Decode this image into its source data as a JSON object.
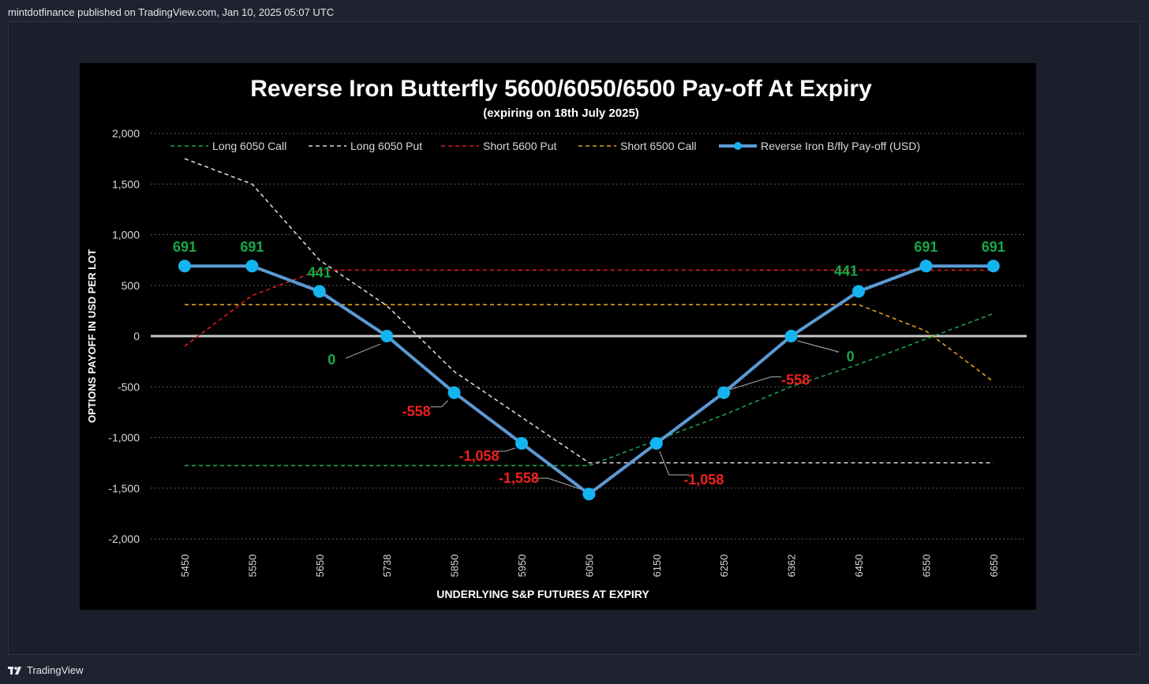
{
  "header": {
    "publish_text": "mintdotfinance published on TradingView.com, Jan 10, 2025 05:07 UTC"
  },
  "footer": {
    "brand": "TradingView"
  },
  "colors": {
    "background": "#000000",
    "long_call": "#1aa34a",
    "long_put": "#d9d9d9",
    "short_put": "#e01a1a",
    "short_call": "#e0a015",
    "payoff_line": "#5b9bd5",
    "payoff_marker": "#14b4f0",
    "label_positive": "#18a848",
    "label_negative": "#f0201e"
  },
  "chart_data": {
    "type": "line",
    "title": "Reverse Iron Butterfly 5600/6050/6500 Pay-off At Expiry",
    "subtitle": "(expiring on 18th July 2025)",
    "xlabel": "UNDERLYING S&P FUTURES AT EXPIRY",
    "ylabel": "OPTIONS PAYOFF IN USD PER LOT",
    "ylim": [
      -2000,
      2000
    ],
    "yticks": [
      2000,
      1500,
      1000,
      500,
      0,
      -500,
      -1000,
      -1500,
      -2000
    ],
    "ytick_labels": [
      "2,000",
      "1,500",
      "1,000",
      "500",
      "0",
      "-500",
      "-1,000",
      "-1,500",
      "-2,000"
    ],
    "categories": [
      "5450",
      "5550",
      "5650",
      "5738",
      "5850",
      "5950",
      "6050",
      "6150",
      "6250",
      "6362",
      "6450",
      "6550",
      "6650"
    ],
    "grid": true,
    "legend_position": "top",
    "series": [
      {
        "name": "Long 6050 Call",
        "style": "dashed",
        "color": "#1aa34a",
        "values": [
          -1278,
          -1278,
          -1278,
          -1278,
          -1278,
          -1278,
          -1278,
          -1028,
          -778,
          -498,
          -278,
          -28,
          222
        ]
      },
      {
        "name": "Long 6050 Put",
        "style": "dashed",
        "color": "#d9d9d9",
        "values": [
          1750,
          1500,
          750,
          300,
          -350,
          -800,
          -1250,
          -1250,
          -1250,
          -1250,
          -1250,
          -1250,
          -1250
        ]
      },
      {
        "name": "Short 5600 Put",
        "style": "dashed",
        "color": "#e01a1a",
        "values": [
          -100,
          400,
          650,
          650,
          650,
          650,
          650,
          650,
          650,
          650,
          650,
          650,
          650
        ]
      },
      {
        "name": "Short 6500 Call",
        "style": "dashed",
        "color": "#e0a015",
        "values": [
          310,
          310,
          310,
          310,
          310,
          310,
          310,
          310,
          310,
          310,
          310,
          50,
          -450
        ]
      },
      {
        "name": "Reverse Iron B/fly Pay-off (USD)",
        "style": "solid-markers",
        "color": "#5b9bd5",
        "values": [
          691,
          691,
          441,
          0,
          -558,
          -1058,
          -1558,
          -1058,
          -558,
          0,
          441,
          691,
          691
        ]
      }
    ],
    "data_labels": [
      "691",
      "691",
      "441",
      "0",
      "-558",
      "-1,058",
      "-1,558",
      "-1,058",
      "-558",
      "0",
      "441",
      "691",
      "691"
    ]
  }
}
